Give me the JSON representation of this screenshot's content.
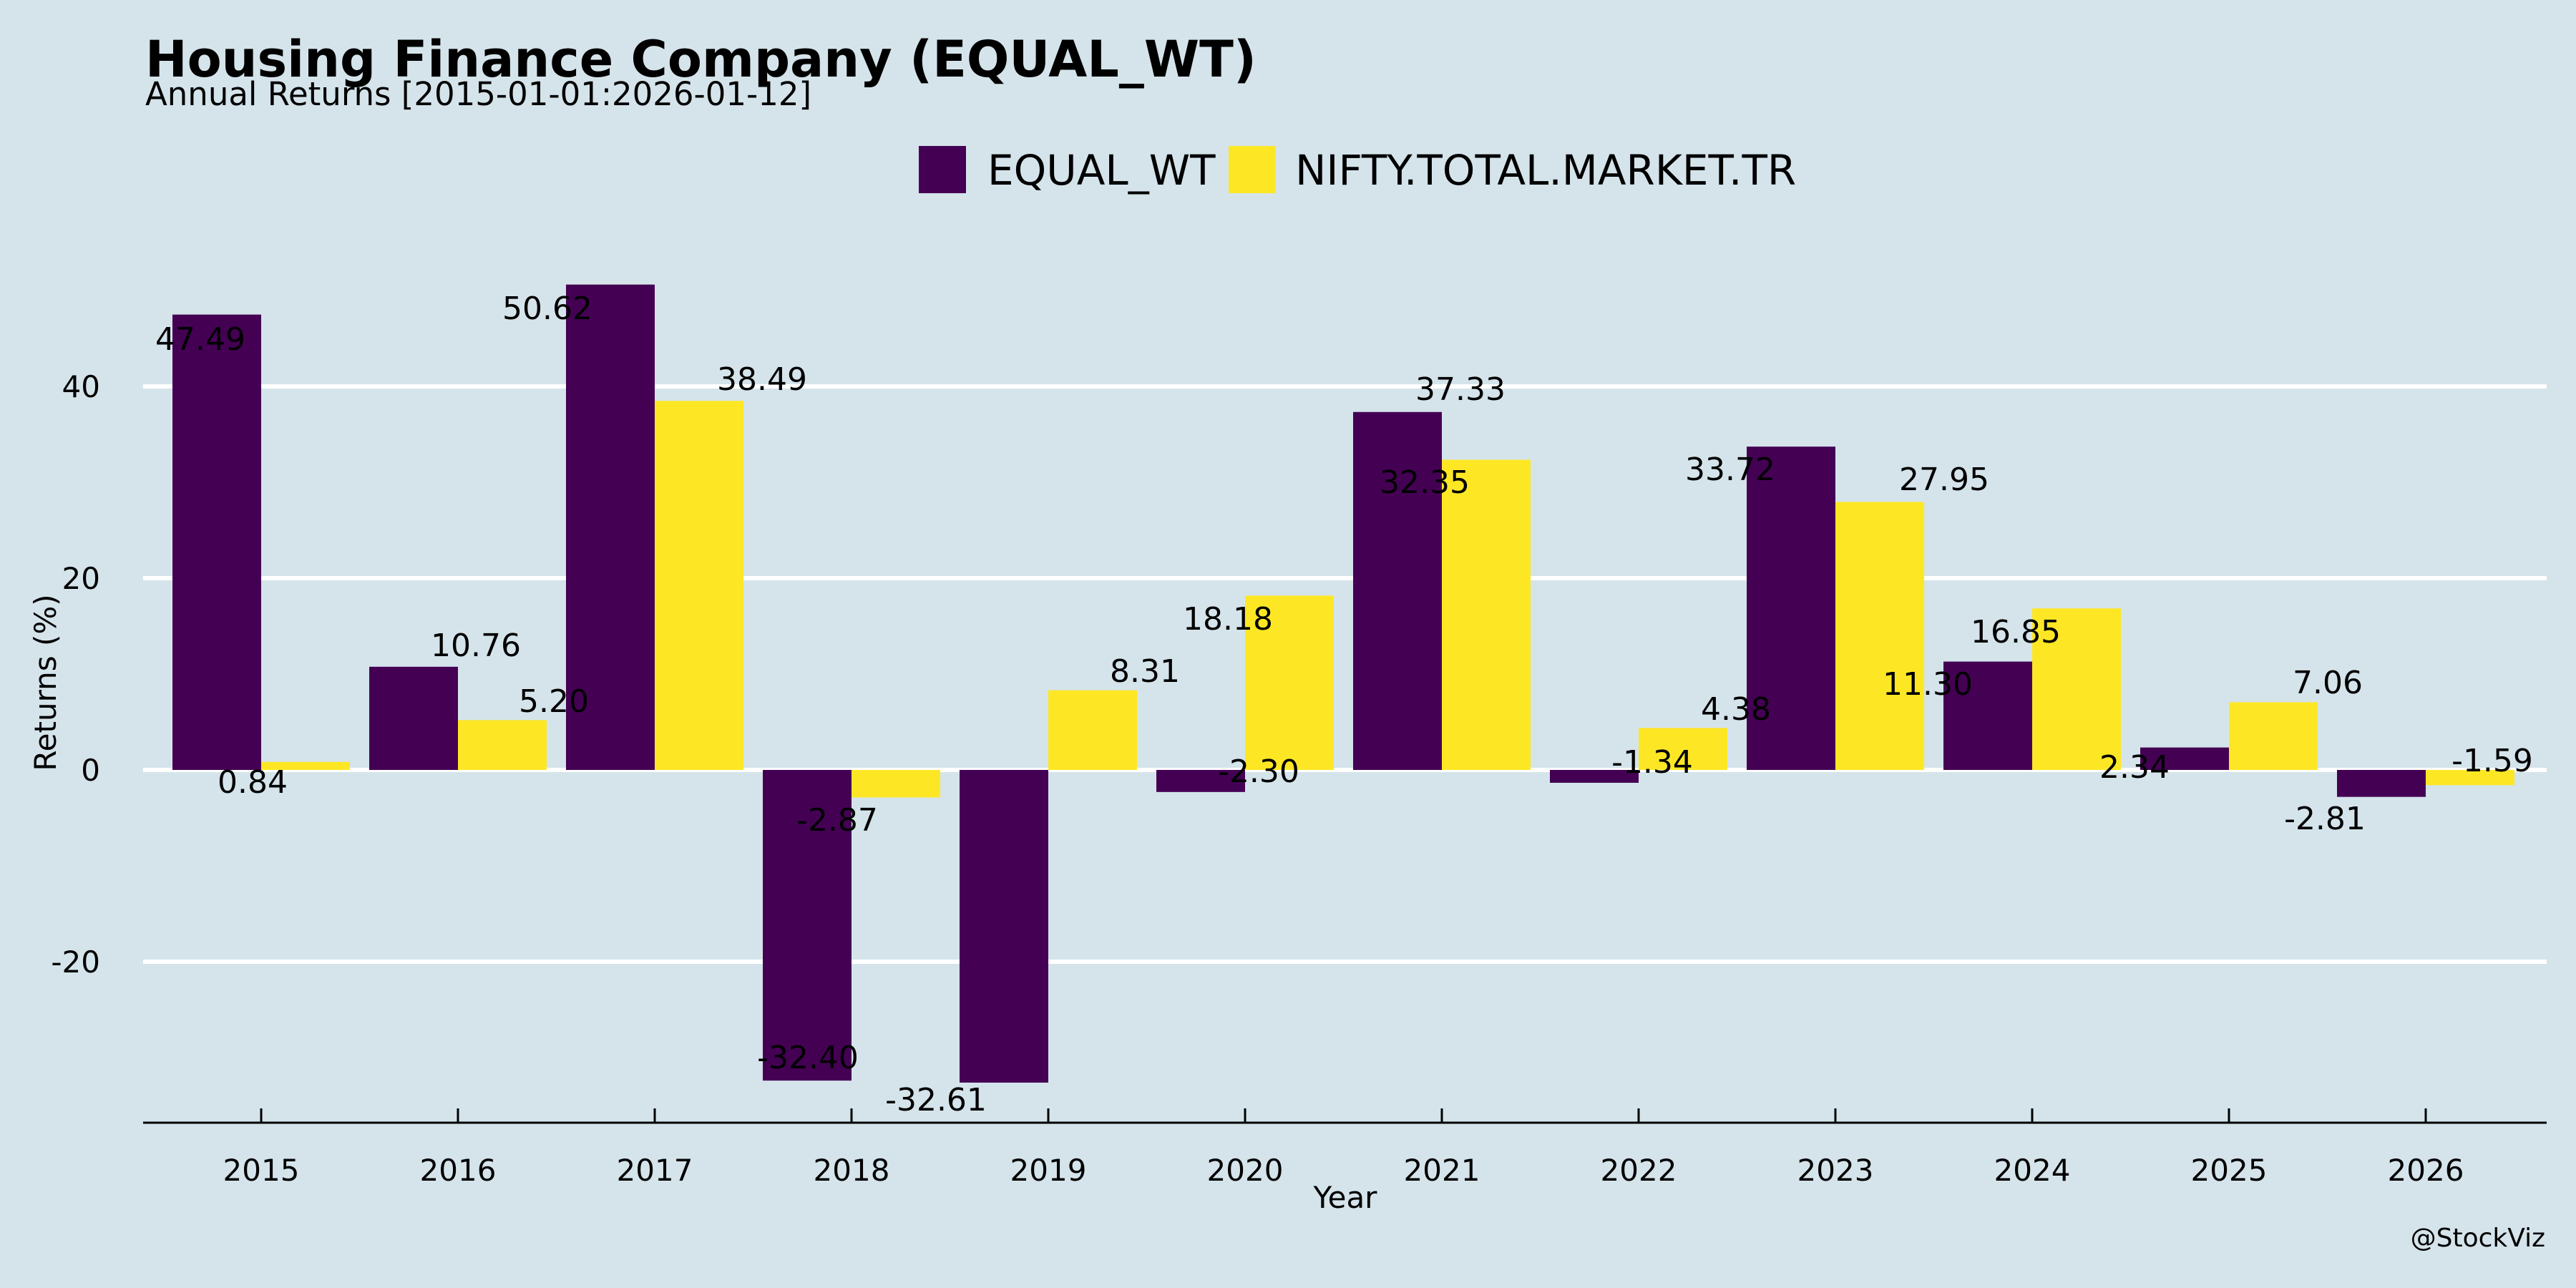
{
  "chart_data": {
    "type": "bar",
    "title": "Housing Finance Company (EQUAL_WT)",
    "subtitle": "Annual Returns [2015-01-01:2026-01-12]",
    "xlabel": "Year",
    "ylabel": "Returns (%)",
    "categories": [
      "2015",
      "2016",
      "2017",
      "2018",
      "2019",
      "2020",
      "2021",
      "2022",
      "2023",
      "2024",
      "2025",
      "2026"
    ],
    "series": [
      {
        "name": "EQUAL_WT",
        "color": "#440154",
        "values": [
          47.49,
          10.76,
          50.62,
          -32.4,
          -32.61,
          -2.3,
          37.33,
          -1.34,
          33.72,
          11.3,
          2.34,
          -2.81
        ],
        "labels": [
          "47.49",
          "10.76",
          "50.62",
          "-32.40",
          "-32.61",
          "-2.30",
          "37.33",
          "-1.34",
          "33.72",
          "11.30",
          "2.34",
          "-2.81"
        ]
      },
      {
        "name": "NIFTY.TOTAL.MARKET.TR",
        "color": "#fde725",
        "values": [
          0.84,
          5.2,
          38.49,
          -2.87,
          8.31,
          18.18,
          32.35,
          4.38,
          27.95,
          16.85,
          7.06,
          -1.59
        ],
        "labels": [
          "0.84",
          "5.20",
          "38.49",
          "-2.87",
          "8.31",
          "18.18",
          "32.35",
          "4.38",
          "27.95",
          "16.85",
          "7.06",
          "-1.59"
        ]
      }
    ],
    "yticks": [
      -20,
      0,
      20,
      40
    ],
    "ytick_labels": [
      "-20",
      "0",
      "20",
      "40"
    ],
    "ylim": [
      -36.8,
      55
    ],
    "grid": "horizontal",
    "legend": "top-center",
    "background_color": "#d5e4eb",
    "watermark": "@StockViz"
  }
}
